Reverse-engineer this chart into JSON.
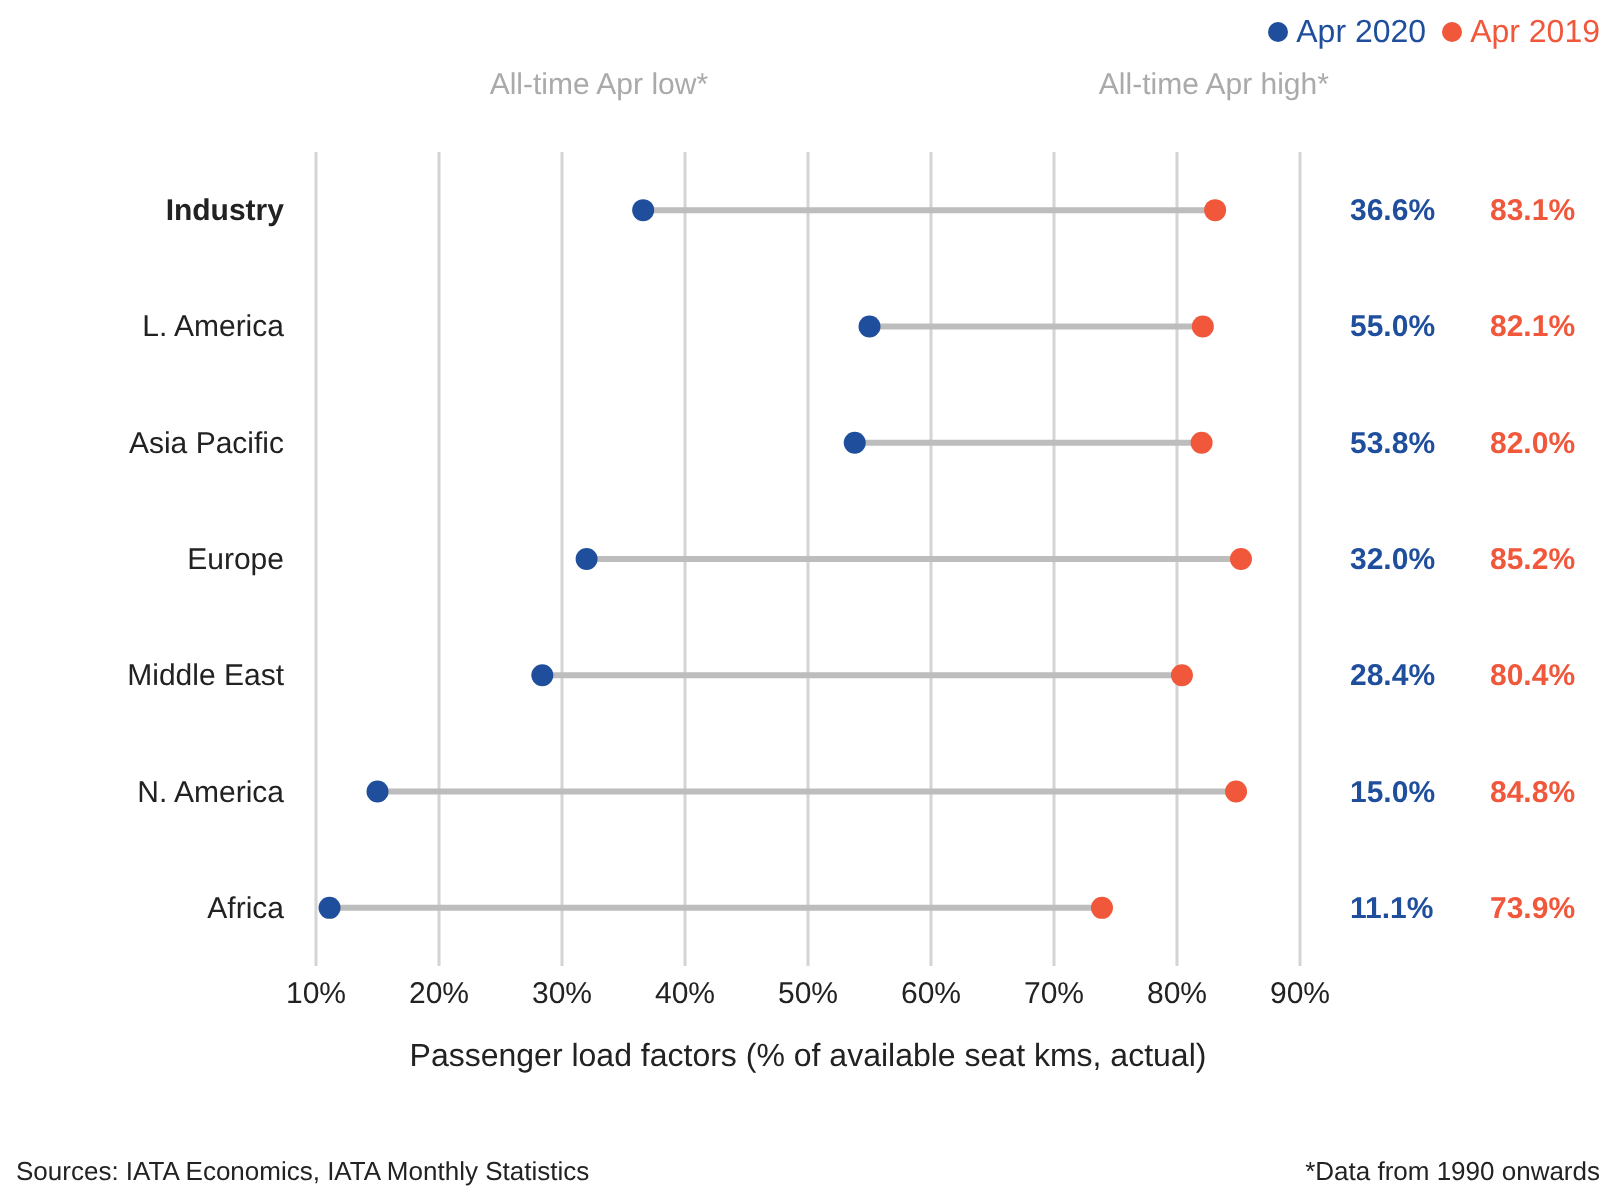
{
  "chart_data": {
    "type": "scatter",
    "orientation": "horizontal",
    "xlabel": "Passenger load factors (% of available seat kms, actual)",
    "categories": [
      "Industry",
      "L. America",
      "Asia Pacific",
      "Europe",
      "Middle East",
      "N. America",
      "Africa"
    ],
    "series": [
      {
        "name": "Apr 2020",
        "color": "#1f4e9c",
        "values": [
          36.6,
          55.0,
          53.8,
          32.0,
          28.4,
          15.0,
          11.1
        ],
        "value_labels": [
          "36.6%",
          "55.0%",
          "53.8%",
          "32.0%",
          "28.4%",
          "15.0%",
          "11.1%"
        ]
      },
      {
        "name": "Apr 2019",
        "color": "#f0573b",
        "values": [
          83.1,
          82.1,
          82.0,
          85.2,
          80.4,
          84.8,
          73.9
        ],
        "value_labels": [
          "83.1%",
          "82.1%",
          "82.0%",
          "85.2%",
          "80.4%",
          "84.8%",
          "73.9%"
        ]
      }
    ],
    "xlim": [
      10,
      90
    ],
    "xticks": [
      {
        "value": 10,
        "label": "10%"
      },
      {
        "value": 20,
        "label": "20%"
      },
      {
        "value": 30,
        "label": "30%"
      },
      {
        "value": 40,
        "label": "40%"
      },
      {
        "value": 50,
        "label": "50%"
      },
      {
        "value": 60,
        "label": "60%"
      },
      {
        "value": 70,
        "label": "70%"
      },
      {
        "value": 80,
        "label": "80%"
      },
      {
        "value": 90,
        "label": "90%"
      }
    ],
    "grid": "x",
    "legend": "top right",
    "marker": "circle",
    "annotations": [
      "All-time Apr low*",
      "All-time Apr high*",
      "Sources: IATA Economics, IATA Monthly Statistics",
      "*Data from 1990 onwards"
    ]
  }
}
